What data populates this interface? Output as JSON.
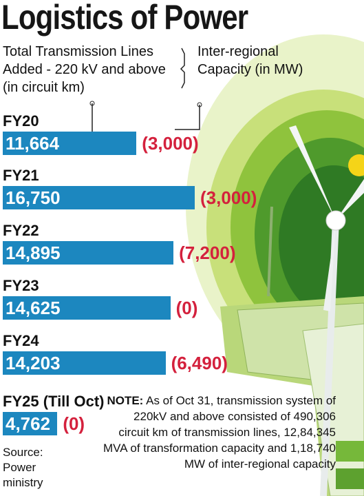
{
  "chart_data": {
    "type": "bar",
    "orientation": "horizontal",
    "title": "Logistics of Power",
    "categories": [
      "FY20",
      "FY21",
      "FY22",
      "FY23",
      "FY24",
      "FY25 (Till Oct)"
    ],
    "series": [
      {
        "name": "Total Transmission Lines Added - 220 kV and above (in circuit km)",
        "color": "#1c87bf",
        "values": [
          11664,
          16750,
          14895,
          14625,
          14203,
          4762
        ],
        "value_labels": [
          "11,664",
          "16,750",
          "14,895",
          "14,625",
          "14,203",
          "4,762"
        ]
      },
      {
        "name": "Inter-regional Capacity (in MW)",
        "color": "#d4213d",
        "values": [
          3000,
          3000,
          7200,
          0,
          6490,
          0
        ],
        "value_labels": [
          "(3,000)",
          "(3,000)",
          "(7,200)",
          "(0)",
          "(6,490)",
          "(0)"
        ]
      }
    ],
    "note_label": "NOTE:",
    "note": "As of Oct 31, transmission system of 220kV and above consisted of 490,306 circuit km of transmission lines, 12,84,345 MVA of transformation capacity and 1,18,740 MW of inter-regional capacity",
    "source": "Source: Power ministry"
  }
}
